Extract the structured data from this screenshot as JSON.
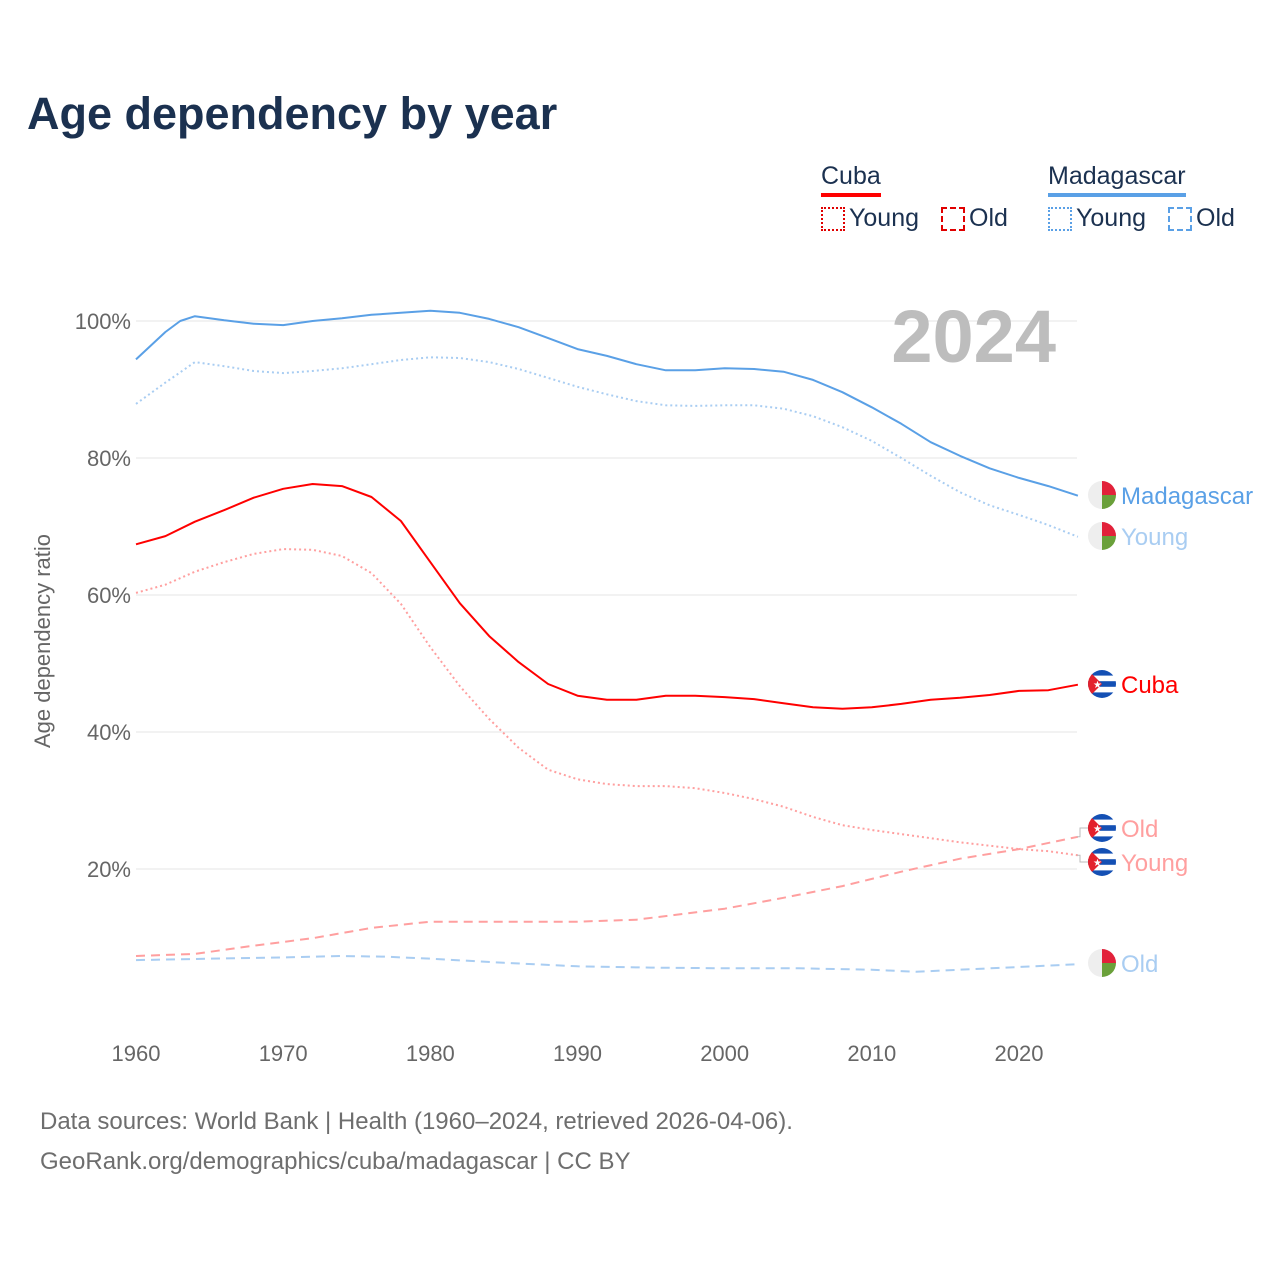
{
  "title": "Age dependency by year",
  "legend": {
    "groups": [
      {
        "country": "Cuba",
        "color": "#ff0000",
        "items": [
          "Young",
          "Old"
        ]
      },
      {
        "country": "Madagascar",
        "color": "#5aa0e6",
        "items": [
          "Young",
          "Old"
        ]
      }
    ]
  },
  "footer": {
    "line1": "Data sources: World Bank | Health (1960–2024, retrieved 2026-04-06).",
    "line2": "GeoRank.org/demographics/cuba/madagascar | CC BY"
  },
  "chart_data": {
    "type": "line",
    "title": "Age dependency by year",
    "xlabel": "",
    "ylabel": "Age dependency ratio",
    "year_label": "2024",
    "xlim": [
      1960,
      2024
    ],
    "ylim": [
      0,
      105
    ],
    "x_ticks": [
      "1960",
      "1970",
      "1980",
      "1990",
      "2000",
      "2010",
      "2020"
    ],
    "y_ticks": [
      "20%",
      "40%",
      "60%",
      "80%",
      "100%"
    ],
    "grid": true,
    "legend_position": "top-right",
    "series": [
      {
        "name": "Madagascar",
        "country": "Madagascar",
        "kind": "Total",
        "color": "#5aa0e6",
        "dash": "solid",
        "end_label": "Madagascar",
        "x": [
          1960,
          1962,
          1963,
          1964,
          1966,
          1968,
          1970,
          1972,
          1974,
          1976,
          1978,
          1980,
          1982,
          1984,
          1986,
          1988,
          1990,
          1992,
          1994,
          1996,
          1998,
          2000,
          2002,
          2004,
          2006,
          2008,
          2010,
          2012,
          2014,
          2016,
          2018,
          2020,
          2022,
          2024
        ],
        "values": [
          94.4,
          98.4,
          100,
          100.7,
          100.1,
          99.6,
          99.4,
          100,
          100.4,
          100.9,
          101.2,
          101.5,
          101.2,
          100.3,
          99.1,
          97.5,
          95.9,
          94.9,
          93.7,
          92.8,
          92.8,
          93.1,
          93,
          92.6,
          91.4,
          89.6,
          87.4,
          85,
          82.3,
          80.3,
          78.5,
          77.1,
          75.9,
          74.5
        ]
      },
      {
        "name": "Madagascar Young",
        "country": "Madagascar",
        "kind": "Young",
        "color": "#a9cdf2",
        "dash": "dotted",
        "end_label": "Young",
        "x": [
          1960,
          1962,
          1964,
          1966,
          1968,
          1970,
          1972,
          1974,
          1976,
          1978,
          1980,
          1982,
          1984,
          1986,
          1988,
          1990,
          1992,
          1994,
          1996,
          1998,
          2000,
          2002,
          2004,
          2006,
          2008,
          2010,
          2012,
          2014,
          2016,
          2018,
          2020,
          2022,
          2024
        ],
        "values": [
          87.9,
          91,
          94,
          93.4,
          92.7,
          92.4,
          92.7,
          93.1,
          93.7,
          94.3,
          94.7,
          94.6,
          94,
          93,
          91.7,
          90.4,
          89.3,
          88.3,
          87.7,
          87.6,
          87.7,
          87.7,
          87.2,
          86.1,
          84.5,
          82.5,
          80,
          77.4,
          75,
          73.1,
          71.7,
          70.2,
          68.5
        ]
      },
      {
        "name": "Madagascar Old",
        "country": "Madagascar",
        "kind": "Old",
        "color": "#a9cdf2",
        "dash": "dashed",
        "end_label": "Old",
        "x": [
          1960,
          1965,
          1970,
          1974,
          1977,
          1980,
          1985,
          1990,
          1995,
          2000,
          2005,
          2010,
          2013,
          2016,
          2020,
          2024
        ],
        "values": [
          6.7,
          6.9,
          7.1,
          7.3,
          7.2,
          6.9,
          6.3,
          5.8,
          5.6,
          5.5,
          5.5,
          5.3,
          5.0,
          5.3,
          5.7,
          6.1
        ]
      },
      {
        "name": "Cuba",
        "country": "Cuba",
        "kind": "Total",
        "color": "#ff0000",
        "dash": "solid",
        "end_label": "Cuba",
        "x": [
          1960,
          1962,
          1964,
          1966,
          1968,
          1970,
          1972,
          1974,
          1976,
          1978,
          1980,
          1982,
          1984,
          1986,
          1988,
          1990,
          1992,
          1994,
          1996,
          1998,
          2000,
          2002,
          2004,
          2006,
          2008,
          2010,
          2012,
          2014,
          2016,
          2018,
          2020,
          2022,
          2024
        ],
        "values": [
          67.4,
          68.6,
          70.7,
          72.4,
          74.2,
          75.5,
          76.2,
          75.9,
          74.3,
          70.8,
          64.8,
          58.8,
          54,
          50.2,
          47,
          45.3,
          44.7,
          44.7,
          45.3,
          45.3,
          45.1,
          44.8,
          44.2,
          43.6,
          43.4,
          43.6,
          44.1,
          44.7,
          45,
          45.4,
          46,
          46.1,
          46.9
        ]
      },
      {
        "name": "Cuba Old",
        "country": "Cuba",
        "kind": "Old",
        "color": "#ff9f9f",
        "dash": "dashed",
        "end_label": "Old",
        "x": [
          1960,
          1964,
          1968,
          1972,
          1976,
          1980,
          1985,
          1990,
          1994,
          2000,
          2004,
          2008,
          2012,
          2016,
          2020,
          2024
        ],
        "values": [
          7.3,
          7.6,
          8.8,
          9.9,
          11.4,
          12.3,
          12.3,
          12.3,
          12.6,
          14.2,
          15.8,
          17.5,
          19.6,
          21.5,
          22.9,
          24.7
        ]
      },
      {
        "name": "Cuba Young",
        "country": "Cuba",
        "kind": "Young",
        "color": "#ff9f9f",
        "dash": "dotted",
        "end_label": "Young",
        "x": [
          1960,
          1962,
          1964,
          1966,
          1968,
          1970,
          1972,
          1974,
          1976,
          1978,
          1980,
          1982,
          1984,
          1986,
          1988,
          1990,
          1992,
          1994,
          1996,
          1998,
          2000,
          2002,
          2004,
          2006,
          2008,
          2010,
          2012,
          2014,
          2016,
          2018,
          2020,
          2022,
          2024
        ],
        "values": [
          60.3,
          61.5,
          63.4,
          64.8,
          66,
          66.7,
          66.6,
          65.7,
          63.2,
          58.7,
          52.4,
          46.7,
          41.9,
          37.7,
          34.5,
          33.1,
          32.4,
          32.1,
          32.1,
          31.8,
          31.1,
          30.2,
          29.1,
          27.6,
          26.4,
          25.7,
          25.1,
          24.5,
          23.9,
          23.4,
          22.9,
          22.6,
          22
        ]
      }
    ]
  }
}
